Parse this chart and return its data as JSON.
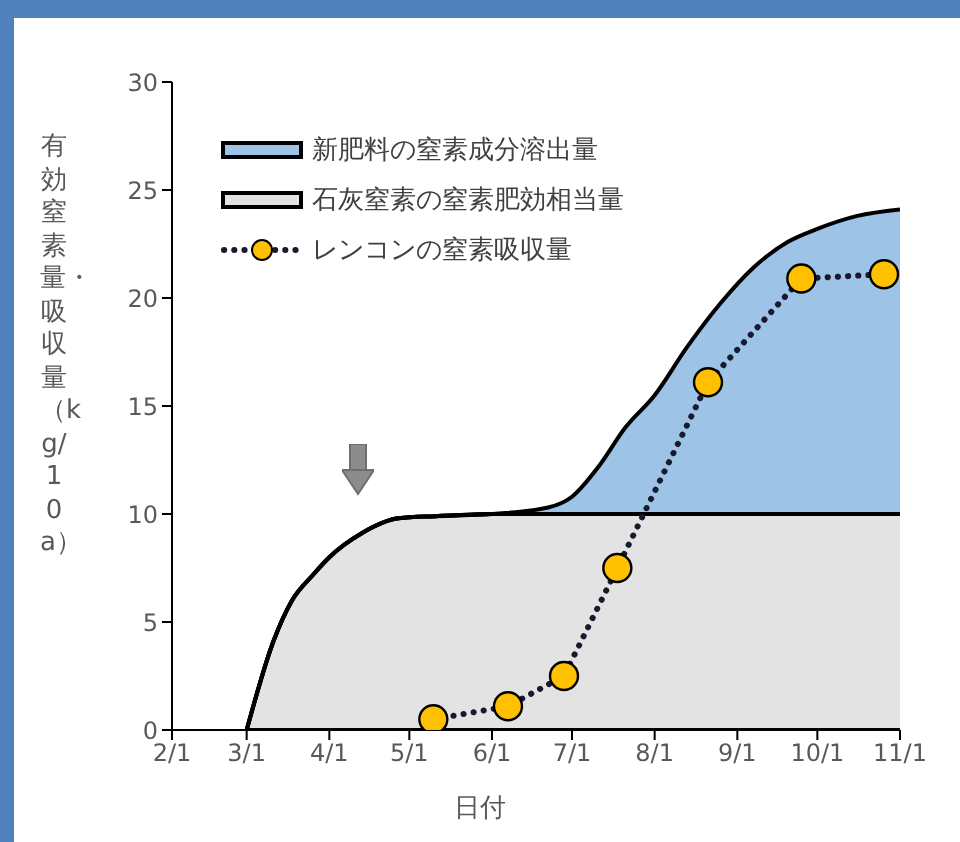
{
  "chart_data": {
    "type": "area",
    "xlabel": "日付",
    "ylabel": "有効窒素量・吸収量（kg/10a）",
    "stacked": true,
    "x": [
      "--03-01",
      "--03-11",
      "--03-18",
      "--03-26",
      "--04-01",
      "--04-13",
      "--04-27",
      "--05-11",
      "--06-01",
      "--06-22",
      "--07-01",
      "--07-11",
      "--07-21",
      "--08-01",
      "--08-13",
      "--08-26",
      "--09-07",
      "--09-20",
      "--10-01",
      "--10-16",
      "--11-01"
    ],
    "series": [
      {
        "name": "石灰窒素の窒素肥効相当量",
        "color": "#e3e3e3",
        "values": [
          0,
          4.1,
          6.0,
          7.2,
          8.0,
          9.1,
          9.8,
          9.9,
          10,
          10,
          10,
          10,
          10,
          10,
          10,
          10,
          10,
          10,
          10,
          10,
          10
        ]
      },
      {
        "name": "新肥料の窒素成分溶出量",
        "color": "#9dc3e6",
        "values": [
          0,
          0,
          0,
          0,
          0,
          0,
          0,
          0,
          0,
          0.3,
          0.8,
          2.2,
          4.0,
          5.5,
          7.7,
          9.8,
          11.4,
          12.6,
          13.2,
          13.8,
          14.1
        ]
      },
      {
        "name": "レンコンの窒素吸収量",
        "type": "line",
        "color": "#ffc000",
        "x": [
          "--05-10",
          "--06-07",
          "--06-28",
          "--07-18",
          "--08-21",
          "--09-25",
          "--10-26"
        ],
        "values": [
          0.5,
          1.1,
          2.5,
          7.5,
          16.1,
          20.9,
          21.1
        ],
        "marker": "circle",
        "line_style": "dotted"
      }
    ],
    "xlim": [
      "--02-01",
      "--11-01"
    ],
    "xticks": [
      {
        "value": "--02-01",
        "label": "2/1"
      },
      {
        "value": "--03-01",
        "label": "3/1"
      },
      {
        "value": "--04-01",
        "label": "4/1"
      },
      {
        "value": "--05-01",
        "label": "5/1"
      },
      {
        "value": "--06-01",
        "label": "6/1"
      },
      {
        "value": "--07-01",
        "label": "7/1"
      },
      {
        "value": "--08-01",
        "label": "8/1"
      },
      {
        "value": "--09-01",
        "label": "9/1"
      },
      {
        "value": "--10-01",
        "label": "10/1"
      },
      {
        "value": "--11-01",
        "label": "11/1"
      }
    ],
    "ylim": [
      0,
      30
    ],
    "yticks": [
      0,
      5,
      10,
      15,
      20,
      25,
      30
    ],
    "grid": false,
    "legend": "top left"
  }
}
